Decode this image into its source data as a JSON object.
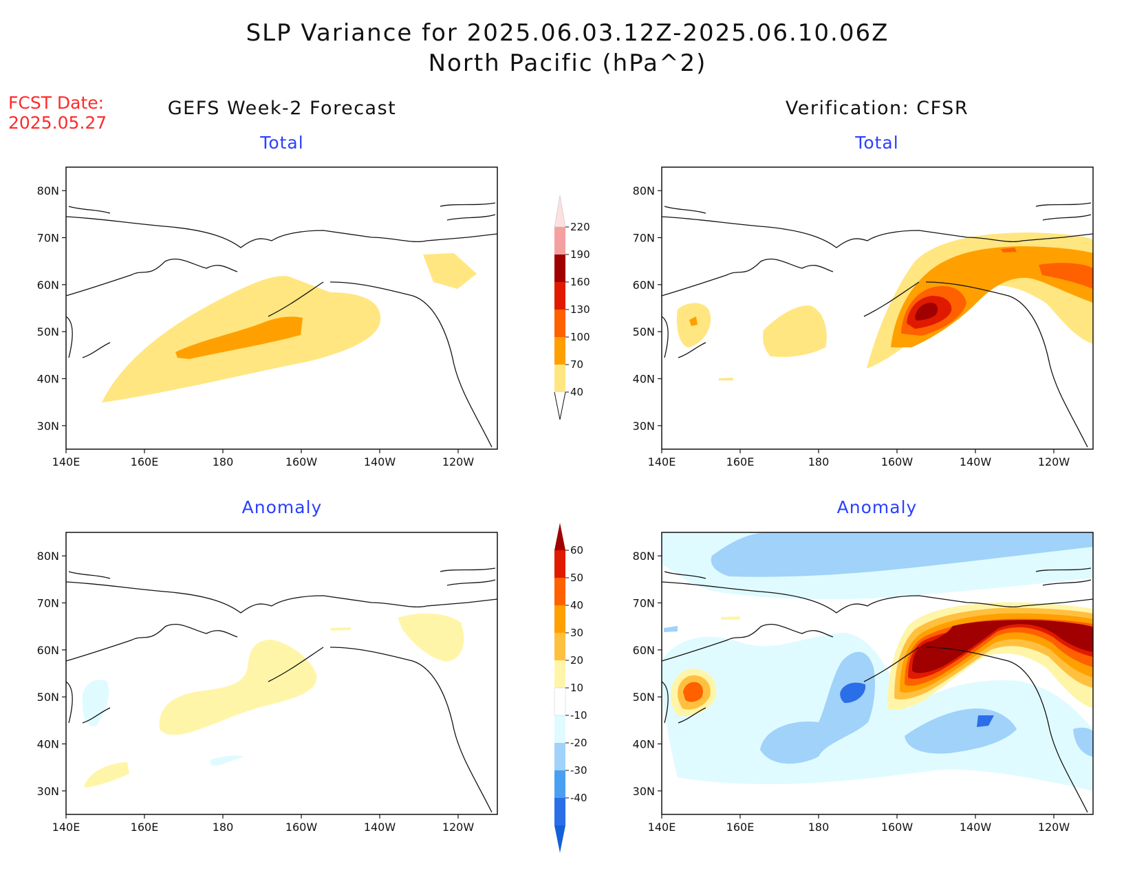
{
  "title_line1": "SLP Variance for 2025.06.03.12Z-2025.06.10.06Z",
  "title_line2": "North Pacific (hPa^2)",
  "fcst_label_line1": "FCST Date:",
  "fcst_label_line2": "2025.05.27",
  "forecast_header": "GEFS Week-2 Forecast",
  "verification_header": "Verification: CFSR",
  "panels": {
    "forecast_total": {
      "subtitle": "Total"
    },
    "verification_total": {
      "subtitle": "Total"
    },
    "forecast_anomaly": {
      "subtitle": "Anomaly"
    },
    "verification_anomaly": {
      "subtitle": "Anomaly"
    }
  },
  "map": {
    "lon_ticks": [
      "140E",
      "160E",
      "180",
      "160W",
      "140W",
      "120W"
    ],
    "lat_ticks": [
      "80N",
      "70N",
      "60N",
      "50N",
      "40N",
      "30N"
    ],
    "lon_range_deg_east": [
      140,
      250
    ],
    "lat_range": [
      25,
      85
    ]
  },
  "colorbar_total": {
    "labels": [
      "40",
      "70",
      "100",
      "130",
      "160",
      "190",
      "220"
    ],
    "colors": [
      "#ffe680",
      "#ffa000",
      "#ff6000",
      "#e01a00",
      "#a00000",
      "#f4a0a0",
      "#fde0e0"
    ]
  },
  "colorbar_anomaly": {
    "labels": [
      "60",
      "50",
      "40",
      "30",
      "20",
      "10",
      "-10",
      "-20",
      "-30",
      "-40"
    ],
    "colors": [
      "#a00000",
      "#e01a00",
      "#ff6000",
      "#ffa000",
      "#ffc040",
      "#fff5a8",
      "#ffffff",
      "#e0fbff",
      "#a0d2fa",
      "#4aa0f0",
      "#2a6ee8",
      "#1460d8"
    ]
  }
}
